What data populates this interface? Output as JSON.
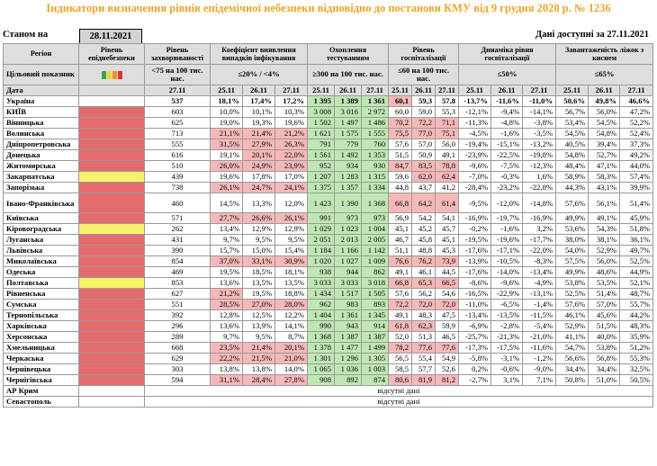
{
  "title": "Індикатори визначення рівнів епідемічної небезпеки відповідно до постанови КМУ від 9 грудня 2020 р. № 1236",
  "status_label": "Станом на",
  "status_date": "28.11.2021",
  "data_available": "Дані доступні за 27.11.2021",
  "headers": {
    "region": "Регіон",
    "level": "Рівень епіднебезпеки",
    "morbidity": "Рівень захворюваності",
    "detection": "Коефіцієнт виявлення випадків інфікування",
    "testing": "Охоплення тестуванням",
    "hosp": "Рівень госпіталізації",
    "dynamics": "Динаміка рівня госпіталізації",
    "beds": "Завантаженість ліжок з киснем"
  },
  "target": {
    "label": "Цільовий показник",
    "morbidity": "<75 на 100 тис. нас.",
    "detection": "≤20% / <4%",
    "testing": "≥300 на 100 тис. нас.",
    "hosp": "≤60 на 100 тис. нас.",
    "dynamics": "≤50%",
    "beds": "≤65%"
  },
  "legend_colors": [
    "#3aa64a",
    "#f0d33c",
    "#f28c28",
    "#e0342c"
  ],
  "date_row": {
    "label": "Дата",
    "morbidity": "27.11",
    "d1": "25.11",
    "d2": "26.11",
    "d3": "27.11"
  },
  "na_text": "відсутні дані",
  "rows": [
    {
      "name": "Україна",
      "level": "",
      "v": [
        "537",
        "18,1%",
        "17,4%",
        "17,2%",
        "1 395",
        "1 389",
        "1 361",
        "60,1",
        "59,3",
        "57,8",
        "-13,7%",
        "-11,6%",
        "-11,0%",
        "50,6%",
        "49,8%",
        "46,6%"
      ]
    },
    {
      "name": "КИЇВ",
      "level": "red",
      "v": [
        "603",
        "10,0%",
        "10,1%",
        "10,3%",
        "3 008",
        "3 016",
        "2 972",
        "60,0",
        "59,0",
        "55,3",
        "-12,1%",
        "-9,4%",
        "-14,1%",
        "56,7%",
        "56,0%",
        "47,2%"
      ]
    },
    {
      "name": "Вінницька",
      "level": "red",
      "v": [
        "625",
        "19,0%",
        "19,3%",
        "19,6%",
        "1 502",
        "1 497",
        "1 486",
        "70,2",
        "72,2",
        "71,1",
        "-11,3%",
        "-4,8%",
        "-3,8%",
        "53,4%",
        "54,5%",
        "52,2%"
      ]
    },
    {
      "name": "Волинська",
      "level": "red",
      "v": [
        "713",
        "21,1%",
        "21,4%",
        "21,2%",
        "1 621",
        "1 575",
        "1 555",
        "75,5",
        "77,0",
        "75,1",
        "-4,5%",
        "-1,6%",
        "-3,5%",
        "54,5%",
        "54,8%",
        "52,4%"
      ]
    },
    {
      "name": "Дніпропетровська",
      "level": "red",
      "v": [
        "555",
        "31,5%",
        "27,9%",
        "26,3%",
        "791",
        "779",
        "760",
        "57,6",
        "57,0",
        "56,0",
        "-19,4%",
        "-15,1%",
        "-13,2%",
        "40,5%",
        "39,4%",
        "37,3%"
      ]
    },
    {
      "name": "Донецька",
      "level": "red",
      "v": [
        "616",
        "19,1%",
        "20,1%",
        "22,0%",
        "1 561",
        "1 492",
        "1 353",
        "51,5",
        "50,9",
        "49,1",
        "-23,9%",
        "-22,5%",
        "-19,8%",
        "54,8%",
        "52,7%",
        "49,2%"
      ]
    },
    {
      "name": "Житомирська",
      "level": "red",
      "v": [
        "510",
        "26,0%",
        "24,9%",
        "23,9%",
        "952",
        "934",
        "930",
        "84,7",
        "83,5",
        "78,8",
        "-9,6%",
        "-7,5%",
        "-12,3%",
        "48,4%",
        "47,1%",
        "44,0%"
      ]
    },
    {
      "name": "Закарпатська",
      "level": "yel",
      "v": [
        "439",
        "19,6%",
        "17,8%",
        "17,0%",
        "1 207",
        "1 283",
        "1 315",
        "59,6",
        "62,0",
        "62,4",
        "-7,0%",
        "-0,3%",
        "1,6%",
        "58,9%",
        "58,3%",
        "57,4%"
      ]
    },
    {
      "name": "Запорізька",
      "level": "red",
      "v": [
        "738",
        "26,1%",
        "24,7%",
        "24,1%",
        "1 375",
        "1 357",
        "1 334",
        "44,8",
        "43,7",
        "41,2",
        "-28,4%",
        "-23,2%",
        "-22,8%",
        "44,3%",
        "43,1%",
        "39,9%"
      ]
    },
    {
      "name": "Івано-Франківська",
      "level": "red",
      "tall": true,
      "v": [
        "460",
        "14,5%",
        "13,3%",
        "12,0%",
        "1 423",
        "1 390",
        "1 368",
        "66,8",
        "64,2",
        "61,4",
        "-9,5%",
        "-12,0%",
        "-14,8%",
        "57,6%",
        "56,1%",
        "51,4%"
      ]
    },
    {
      "name": "Київська",
      "level": "red",
      "v": [
        "571",
        "27,7%",
        "26,6%",
        "26,1%",
        "991",
        "973",
        "973",
        "56,9",
        "54,2",
        "54,1",
        "-16,9%",
        "-19,7%",
        "-16,9%",
        "49,9%",
        "49,1%",
        "45,9%"
      ]
    },
    {
      "name": "Кіровоградська",
      "level": "yel",
      "v": [
        "262",
        "13,4%",
        "12,9%",
        "12,9%",
        "1 029",
        "1 023",
        "1 004",
        "45,1",
        "45,2",
        "45,7",
        "-0,2%",
        "-1,6%",
        "3,2%",
        "53,6%",
        "54,3%",
        "51,8%"
      ]
    },
    {
      "name": "Луганська",
      "level": "red",
      "v": [
        "431",
        "9,7%",
        "9,5%",
        "9,5%",
        "2 051",
        "2 013",
        "2 005",
        "46,7",
        "45,8",
        "45,1",
        "-19,5%",
        "-19,6%",
        "-17,7%",
        "38,0%",
        "38,1%",
        "36,1%"
      ]
    },
    {
      "name": "Львівська",
      "level": "red",
      "v": [
        "390",
        "15,7%",
        "15,0%",
        "15,4%",
        "1 184",
        "1 166",
        "1 142",
        "51,1",
        "48,8",
        "45,3",
        "-17,6%",
        "-17,1%",
        "-22,0%",
        "54,0%",
        "52,9%",
        "49,7%"
      ]
    },
    {
      "name": "Миколаївська",
      "level": "red",
      "v": [
        "854",
        "37,0%",
        "33,1%",
        "30,9%",
        "1 020",
        "1 027",
        "1 009",
        "76,6",
        "76,2",
        "73,9",
        "-13,9%",
        "-10,5%",
        "-8,3%",
        "57,5%",
        "56,0%",
        "52,5%"
      ]
    },
    {
      "name": "Одеська",
      "level": "red",
      "v": [
        "469",
        "19,5%",
        "18,5%",
        "18,1%",
        "938",
        "944",
        "862",
        "49,1",
        "46,1",
        "44,5",
        "-17,6%",
        "-14,0%",
        "-13,4%",
        "49,9%",
        "48,6%",
        "44,9%"
      ]
    },
    {
      "name": "Полтавська",
      "level": "yel",
      "v": [
        "853",
        "13,6%",
        "13,5%",
        "13,5%",
        "3 033",
        "3 033",
        "3 018",
        "66,8",
        "65,3",
        "66,5",
        "-8,6%",
        "-9,6%",
        "-4,9%",
        "53,8%",
        "53,5%",
        "52,1%"
      ]
    },
    {
      "name": "Рівненська",
      "level": "red",
      "v": [
        "627",
        "21,2%",
        "19,5%",
        "18,8%",
        "1 434",
        "1 517",
        "1 505",
        "57,6",
        "56,2",
        "54,6",
        "-16,5%",
        "-22,9%",
        "-13,1%",
        "52,5%",
        "51,4%",
        "48,7%"
      ]
    },
    {
      "name": "Сумська",
      "level": "red",
      "v": [
        "551",
        "28,5%",
        "27,0%",
        "28,0%",
        "962",
        "983",
        "893",
        "72,2",
        "72,0",
        "72,0",
        "-11,0%",
        "-6,5%",
        "-1,4%",
        "57,6%",
        "57,0%",
        "55,7%"
      ]
    },
    {
      "name": "Тернопільська",
      "level": "red",
      "v": [
        "392",
        "12,8%",
        "12,5%",
        "12,2%",
        "1 404",
        "1 361",
        "1 345",
        "49,1",
        "48,3",
        "47,5",
        "-13,4%",
        "-13,5%",
        "-11,5%",
        "46,1%",
        "45,6%",
        "44,2%"
      ]
    },
    {
      "name": "Харківська",
      "level": "red",
      "v": [
        "296",
        "13,6%",
        "13,9%",
        "14,1%",
        "990",
        "943",
        "914",
        "61,8",
        "62,3",
        "59,9",
        "-6,9%",
        "-2,8%",
        "-5,4%",
        "52,9%",
        "51,5%",
        "48,3%"
      ]
    },
    {
      "name": "Херсонська",
      "level": "red",
      "v": [
        "289",
        "9,7%",
        "9,5%",
        "8,7%",
        "1 368",
        "1 387",
        "1 387",
        "52,0",
        "51,3",
        "46,5",
        "-25,7%",
        "-21,3%",
        "-21,0%",
        "41,1%",
        "40,0%",
        "35,9%"
      ]
    },
    {
      "name": "Хмельницька",
      "level": "red",
      "v": [
        "668",
        "23,5%",
        "21,4%",
        "20,1%",
        "1 378",
        "1 477",
        "1 499",
        "78,2",
        "77,6",
        "77,6",
        "-17,3%",
        "-17,5%",
        "-11,6%",
        "54,7%",
        "53,8%",
        "51,2%"
      ]
    },
    {
      "name": "Черкаська",
      "level": "red",
      "v": [
        "629",
        "22,2%",
        "21,5%",
        "21,0%",
        "1 301",
        "1 296",
        "1 305",
        "56,5",
        "55,4",
        "54,9",
        "-5,8%",
        "-3,1%",
        "-1,2%",
        "56,6%",
        "56,8%",
        "55,3%"
      ]
    },
    {
      "name": "Чернівецька",
      "level": "red",
      "v": [
        "303",
        "13,8%",
        "13,8%",
        "14,0%",
        "1 065",
        "1 036",
        "1 003",
        "58,5",
        "57,7",
        "52,6",
        "0,2%",
        "-0,6%",
        "-9,0%",
        "34,4%",
        "34,4%",
        "32,5%"
      ]
    },
    {
      "name": "Чернігівська",
      "level": "red",
      "v": [
        "594",
        "31,1%",
        "28,4%",
        "27,8%",
        "908",
        "892",
        "874",
        "80,6",
        "81,9",
        "81,2",
        "-2,7%",
        "3,1%",
        "7,1%",
        "50,8%",
        "51,0%",
        "50,5%"
      ]
    },
    {
      "name": "АР Крим",
      "level": "none",
      "na": true
    },
    {
      "name": "Севастополь",
      "level": "none",
      "na": true
    }
  ]
}
